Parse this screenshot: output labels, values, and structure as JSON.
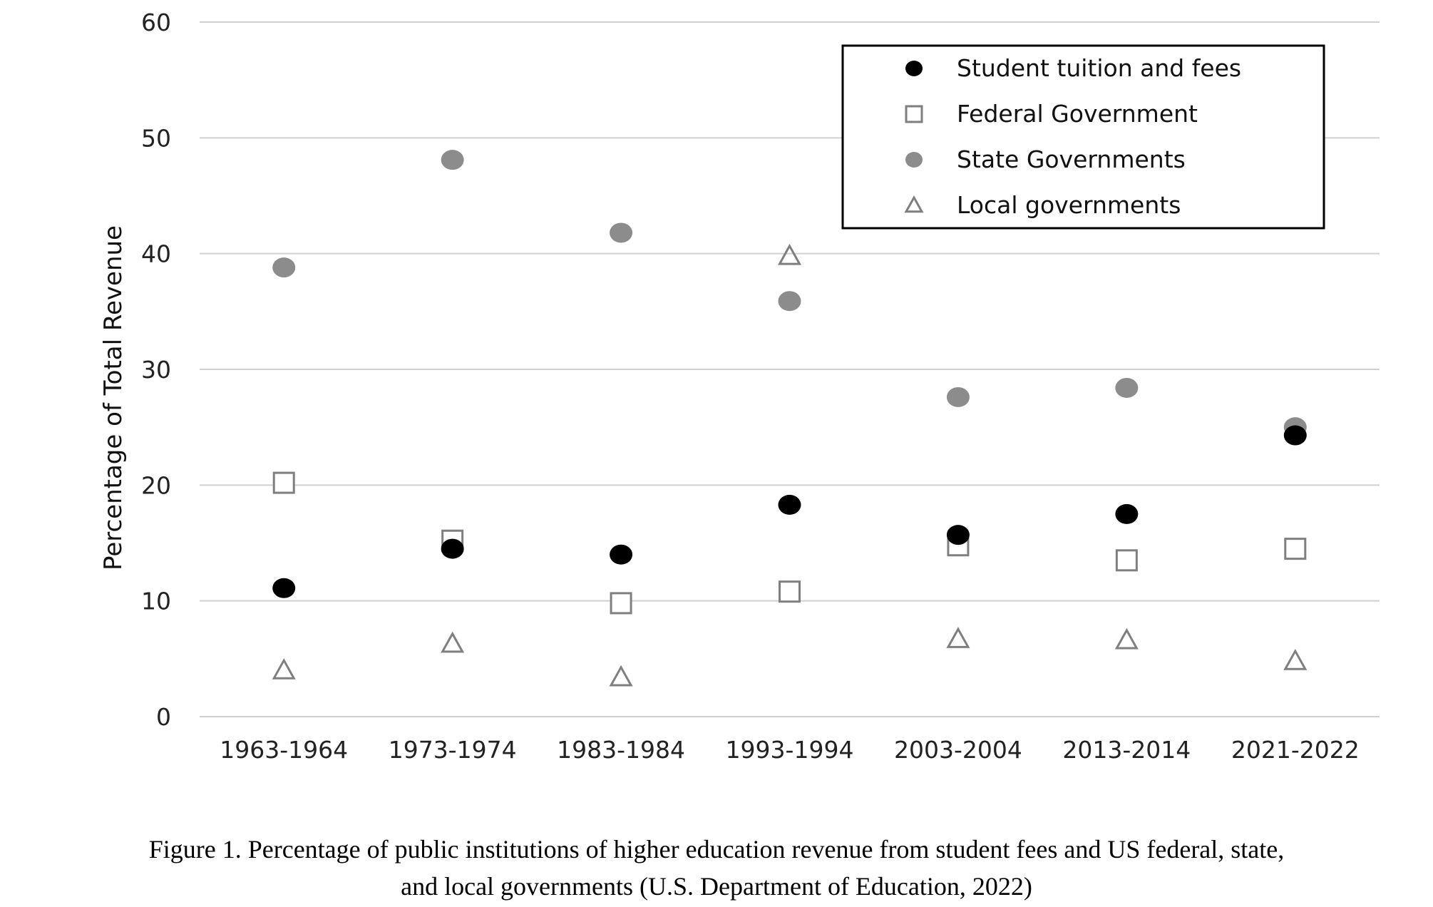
{
  "chart_data": {
    "type": "scatter",
    "categories": [
      "1963-1964",
      "1973-1974",
      "1983-1984",
      "1993-1994",
      "2003-2004",
      "2013-2014",
      "2021-2022"
    ],
    "ylabel": "Percentage of Total Revenue",
    "xlabel": "",
    "ylim": [
      0,
      60
    ],
    "yticks": [
      0,
      10,
      20,
      30,
      40,
      50,
      60
    ],
    "grid": true,
    "legend_position": "top-right",
    "series": [
      {
        "name": "Student tuition and fees",
        "marker": "filled-circle",
        "color": "#000000",
        "values": [
          11.1,
          14.5,
          14.0,
          18.3,
          15.7,
          17.5,
          24.3
        ]
      },
      {
        "name": "Federal Government",
        "marker": "open-square",
        "color": "#7f7f7f",
        "values": [
          20.2,
          15.2,
          9.8,
          10.8,
          14.8,
          13.5,
          14.5
        ]
      },
      {
        "name": "State Governments",
        "marker": "filled-circle",
        "color": "#8c8c8c",
        "values": [
          38.8,
          48.1,
          41.8,
          35.9,
          27.6,
          28.4,
          25.0
        ]
      },
      {
        "name": "Local governments",
        "marker": "open-triangle",
        "color": "#7f7f7f",
        "values": [
          4.0,
          6.3,
          3.4,
          39.8,
          6.7,
          6.6,
          4.8
        ]
      }
    ]
  },
  "caption": {
    "line1": "Figure 1. Percentage of public institutions of higher education revenue from student fees and US federal, state,",
    "line2": "and local governments (U.S. Department of Education, 2022)"
  }
}
